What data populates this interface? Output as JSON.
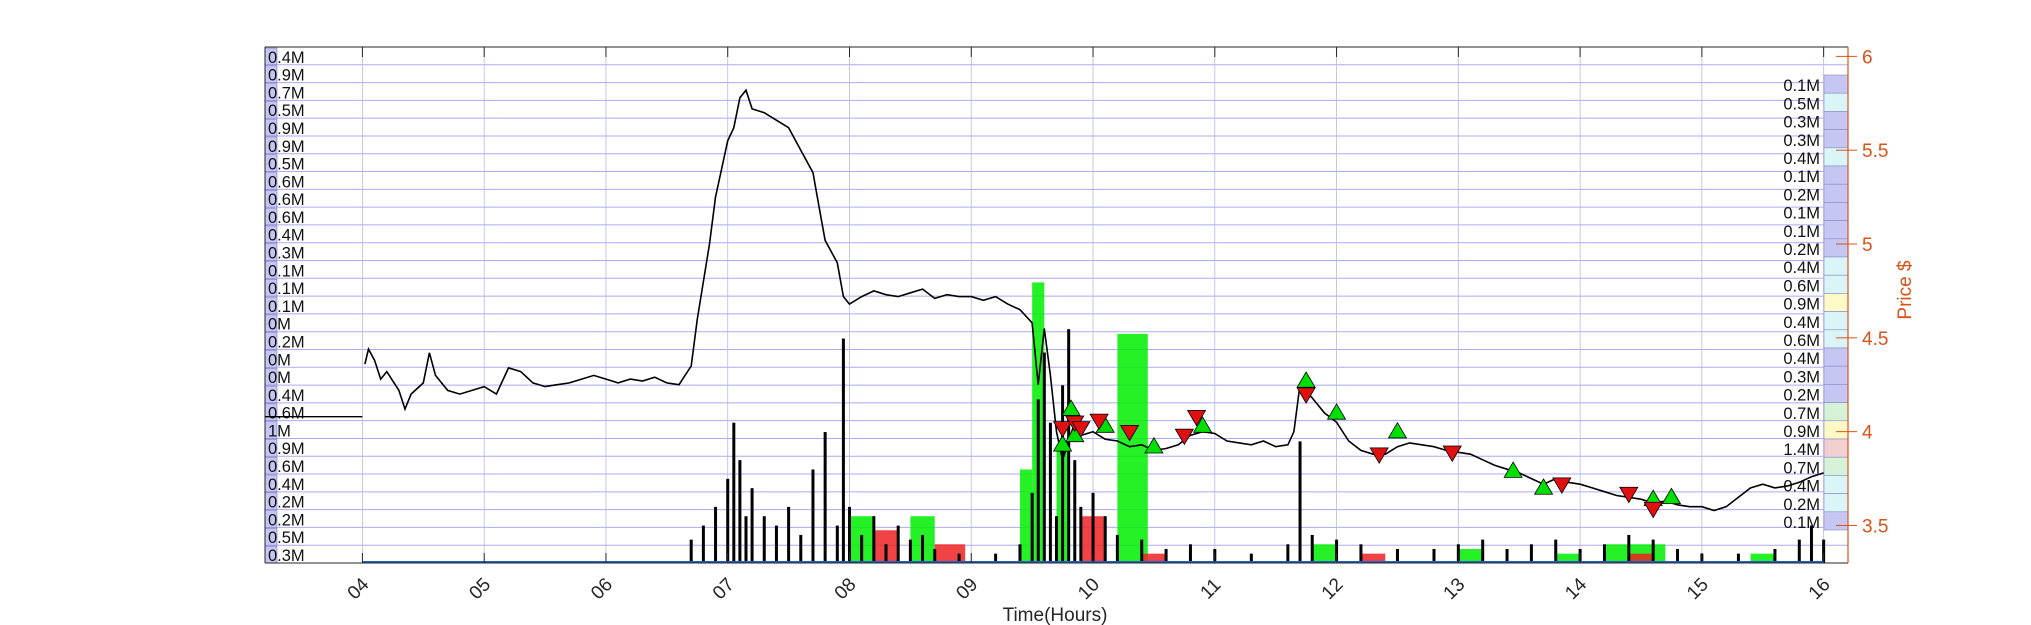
{
  "chart_data": {
    "type": "line",
    "xlabel": "Time(Hours)",
    "ylabel": "Price $",
    "xlim": [
      3.2,
      16.2
    ],
    "ylim": [
      3.3,
      6.05
    ],
    "x_ticks": [
      "04",
      "05",
      "06",
      "07",
      "08",
      "09",
      "10",
      "11",
      "12",
      "13",
      "14",
      "15",
      "16"
    ],
    "y_ticks": [
      3.5,
      4,
      4.5,
      5,
      5.5,
      6
    ],
    "grid": true,
    "colors": {
      "price_line": "#000000",
      "right_axis": "#d95319",
      "grid_line": "#8f8fef",
      "buy_marker": "#00e000",
      "sell_marker": "#e01010",
      "volume": "#000000",
      "volume_green": "#00ee00",
      "volume_red": "#ee2222",
      "left_level_box": "#c6c6f2",
      "right_level_box": "#c6c6f2",
      "right_box_cyan": "#d9f5f8",
      "right_box_yellow": "#fdfac8",
      "right_box_pink": "#f2cfd0",
      "right_box_green": "#d6f2d6"
    },
    "price_series": [
      [
        4.02,
        4.36
      ],
      [
        4.05,
        4.44
      ],
      [
        4.1,
        4.38
      ],
      [
        4.15,
        4.28
      ],
      [
        4.2,
        4.32
      ],
      [
        4.3,
        4.22
      ],
      [
        4.35,
        4.12
      ],
      [
        4.4,
        4.2
      ],
      [
        4.5,
        4.26
      ],
      [
        4.55,
        4.42
      ],
      [
        4.6,
        4.3
      ],
      [
        4.7,
        4.22
      ],
      [
        4.8,
        4.2
      ],
      [
        4.9,
        4.22
      ],
      [
        5.0,
        4.24
      ],
      [
        5.1,
        4.2
      ],
      [
        5.2,
        4.34
      ],
      [
        5.3,
        4.32
      ],
      [
        5.4,
        4.26
      ],
      [
        5.5,
        4.24
      ],
      [
        5.6,
        4.25
      ],
      [
        5.7,
        4.26
      ],
      [
        5.8,
        4.28
      ],
      [
        5.9,
        4.3
      ],
      [
        6.0,
        4.28
      ],
      [
        6.1,
        4.26
      ],
      [
        6.2,
        4.28
      ],
      [
        6.3,
        4.27
      ],
      [
        6.4,
        4.29
      ],
      [
        6.5,
        4.26
      ],
      [
        6.6,
        4.25
      ],
      [
        6.7,
        4.35
      ],
      [
        6.75,
        4.6
      ],
      [
        6.8,
        4.8
      ],
      [
        6.85,
        5.0
      ],
      [
        6.9,
        5.25
      ],
      [
        6.95,
        5.4
      ],
      [
        7.0,
        5.55
      ],
      [
        7.05,
        5.62
      ],
      [
        7.1,
        5.78
      ],
      [
        7.15,
        5.82
      ],
      [
        7.2,
        5.72
      ],
      [
        7.3,
        5.7
      ],
      [
        7.4,
        5.66
      ],
      [
        7.5,
        5.62
      ],
      [
        7.6,
        5.5
      ],
      [
        7.7,
        5.38
      ],
      [
        7.75,
        5.2
      ],
      [
        7.8,
        5.02
      ],
      [
        7.9,
        4.9
      ],
      [
        7.95,
        4.72
      ],
      [
        8.0,
        4.68
      ],
      [
        8.1,
        4.72
      ],
      [
        8.2,
        4.75
      ],
      [
        8.3,
        4.73
      ],
      [
        8.4,
        4.72
      ],
      [
        8.5,
        4.74
      ],
      [
        8.6,
        4.76
      ],
      [
        8.7,
        4.71
      ],
      [
        8.8,
        4.73
      ],
      [
        8.9,
        4.72
      ],
      [
        9.0,
        4.72
      ],
      [
        9.1,
        4.7
      ],
      [
        9.2,
        4.72
      ],
      [
        9.3,
        4.68
      ],
      [
        9.4,
        4.65
      ],
      [
        9.5,
        4.58
      ],
      [
        9.55,
        4.25
      ],
      [
        9.6,
        4.55
      ],
      [
        9.65,
        4.3
      ],
      [
        9.7,
        4.0
      ],
      [
        9.75,
        3.85
      ],
      [
        9.8,
        3.95
      ],
      [
        9.85,
        4.05
      ],
      [
        9.9,
        3.98
      ],
      [
        10.0,
        4.0
      ],
      [
        10.1,
        3.96
      ],
      [
        10.2,
        3.95
      ],
      [
        10.3,
        3.92
      ],
      [
        10.4,
        3.93
      ],
      [
        10.5,
        3.9
      ],
      [
        10.6,
        3.91
      ],
      [
        10.7,
        3.93
      ],
      [
        10.8,
        3.98
      ],
      [
        10.9,
        4.0
      ],
      [
        11.0,
        3.99
      ],
      [
        11.1,
        3.95
      ],
      [
        11.2,
        3.94
      ],
      [
        11.3,
        3.93
      ],
      [
        11.4,
        3.95
      ],
      [
        11.5,
        3.92
      ],
      [
        11.6,
        3.93
      ],
      [
        11.65,
        4.0
      ],
      [
        11.7,
        4.25
      ],
      [
        11.8,
        4.18
      ],
      [
        11.9,
        4.1
      ],
      [
        12.0,
        4.05
      ],
      [
        12.1,
        3.95
      ],
      [
        12.2,
        3.9
      ],
      [
        12.3,
        3.88
      ],
      [
        12.4,
        3.88
      ],
      [
        12.5,
        3.92
      ],
      [
        12.6,
        3.94
      ],
      [
        12.7,
        3.93
      ],
      [
        12.8,
        3.92
      ],
      [
        12.9,
        3.9
      ],
      [
        13.0,
        3.89
      ],
      [
        13.1,
        3.88
      ],
      [
        13.2,
        3.85
      ],
      [
        13.3,
        3.82
      ],
      [
        13.4,
        3.8
      ],
      [
        13.5,
        3.78
      ],
      [
        13.6,
        3.75
      ],
      [
        13.7,
        3.72
      ],
      [
        13.8,
        3.75
      ],
      [
        13.9,
        3.73
      ],
      [
        14.0,
        3.72
      ],
      [
        14.1,
        3.7
      ],
      [
        14.2,
        3.68
      ],
      [
        14.3,
        3.66
      ],
      [
        14.4,
        3.65
      ],
      [
        14.5,
        3.64
      ],
      [
        14.6,
        3.62
      ],
      [
        14.7,
        3.63
      ],
      [
        14.8,
        3.61
      ],
      [
        14.9,
        3.6
      ],
      [
        15.0,
        3.6
      ],
      [
        15.1,
        3.58
      ],
      [
        15.2,
        3.6
      ],
      [
        15.3,
        3.65
      ],
      [
        15.4,
        3.7
      ],
      [
        15.5,
        3.72
      ],
      [
        15.6,
        3.7
      ],
      [
        15.7,
        3.71
      ],
      [
        15.8,
        3.73
      ],
      [
        15.9,
        3.76
      ],
      [
        16.0,
        3.78
      ]
    ],
    "pre_market_segment": [
      [
        3.2,
        4.08
      ],
      [
        4.0,
        4.08
      ]
    ],
    "buy_markers": [
      [
        9.75,
        3.93
      ],
      [
        9.82,
        4.12
      ],
      [
        9.85,
        3.98
      ],
      [
        10.1,
        4.03
      ],
      [
        10.5,
        3.92
      ],
      [
        10.9,
        4.03
      ],
      [
        11.75,
        4.27
      ],
      [
        12.0,
        4.1
      ],
      [
        12.5,
        4.0
      ],
      [
        13.45,
        3.79
      ],
      [
        13.7,
        3.7
      ],
      [
        14.6,
        3.64
      ],
      [
        14.75,
        3.65
      ]
    ],
    "sell_markers": [
      [
        9.75,
        4.02
      ],
      [
        9.85,
        4.05
      ],
      [
        9.9,
        4.02
      ],
      [
        10.05,
        4.06
      ],
      [
        10.3,
        4.0
      ],
      [
        10.75,
        3.98
      ],
      [
        10.85,
        4.08
      ],
      [
        11.75,
        4.2
      ],
      [
        12.35,
        3.88
      ],
      [
        12.95,
        3.89
      ],
      [
        13.85,
        3.72
      ],
      [
        14.4,
        3.67
      ],
      [
        14.6,
        3.59
      ]
    ],
    "volume_bars": [
      [
        6.7,
        0.05
      ],
      [
        6.8,
        0.08
      ],
      [
        6.9,
        0.12
      ],
      [
        7.0,
        0.18
      ],
      [
        7.05,
        0.3
      ],
      [
        7.1,
        0.22
      ],
      [
        7.15,
        0.1
      ],
      [
        7.2,
        0.16
      ],
      [
        7.3,
        0.1
      ],
      [
        7.4,
        0.08
      ],
      [
        7.5,
        0.12
      ],
      [
        7.6,
        0.06
      ],
      [
        7.7,
        0.2
      ],
      [
        7.8,
        0.28
      ],
      [
        7.9,
        0.08
      ],
      [
        7.95,
        0.48
      ],
      [
        8.0,
        0.12
      ],
      [
        8.1,
        0.06
      ],
      [
        8.2,
        0.1
      ],
      [
        8.3,
        0.04
      ],
      [
        8.4,
        0.08
      ],
      [
        8.5,
        0.05
      ],
      [
        8.6,
        0.06
      ],
      [
        8.7,
        0.03
      ],
      [
        8.9,
        0.02
      ],
      [
        9.2,
        0.02
      ],
      [
        9.4,
        0.04
      ],
      [
        9.5,
        0.15
      ],
      [
        9.55,
        0.35
      ],
      [
        9.6,
        0.45
      ],
      [
        9.65,
        0.3
      ],
      [
        9.7,
        0.1
      ],
      [
        9.75,
        0.38
      ],
      [
        9.8,
        0.5
      ],
      [
        9.85,
        0.22
      ],
      [
        9.9,
        0.12
      ],
      [
        10.0,
        0.15
      ],
      [
        10.1,
        0.1
      ],
      [
        10.2,
        0.06
      ],
      [
        10.4,
        0.05
      ],
      [
        10.6,
        0.03
      ],
      [
        10.8,
        0.04
      ],
      [
        11.0,
        0.03
      ],
      [
        11.3,
        0.02
      ],
      [
        11.6,
        0.04
      ],
      [
        11.7,
        0.26
      ],
      [
        11.8,
        0.06
      ],
      [
        12.0,
        0.05
      ],
      [
        12.2,
        0.04
      ],
      [
        12.5,
        0.03
      ],
      [
        12.8,
        0.03
      ],
      [
        13.0,
        0.04
      ],
      [
        13.2,
        0.05
      ],
      [
        13.4,
        0.03
      ],
      [
        13.6,
        0.04
      ],
      [
        13.8,
        0.05
      ],
      [
        14.0,
        0.03
      ],
      [
        14.2,
        0.04
      ],
      [
        14.4,
        0.06
      ],
      [
        14.6,
        0.05
      ],
      [
        14.8,
        0.03
      ],
      [
        15.0,
        0.02
      ],
      [
        15.3,
        0.02
      ],
      [
        15.6,
        0.03
      ],
      [
        15.8,
        0.05
      ],
      [
        15.9,
        0.08
      ],
      [
        16.0,
        0.05
      ]
    ],
    "volume_blocks_green": [
      [
        8.0,
        8.2,
        0.1
      ],
      [
        8.5,
        8.7,
        0.1
      ],
      [
        9.4,
        9.5,
        0.2
      ],
      [
        9.5,
        9.6,
        0.6
      ],
      [
        9.7,
        9.8,
        0.25
      ],
      [
        10.2,
        10.45,
        0.49
      ],
      [
        11.8,
        12.0,
        0.04
      ],
      [
        13.0,
        13.2,
        0.03
      ],
      [
        13.8,
        14.0,
        0.02
      ],
      [
        14.2,
        14.7,
        0.04
      ],
      [
        15.4,
        15.6,
        0.02
      ]
    ],
    "volume_blocks_red": [
      [
        8.2,
        8.4,
        0.07
      ],
      [
        8.7,
        8.95,
        0.04
      ],
      [
        9.9,
        10.1,
        0.1
      ],
      [
        10.4,
        10.6,
        0.02
      ],
      [
        12.2,
        12.4,
        0.02
      ],
      [
        14.4,
        14.6,
        0.02
      ]
    ],
    "left_levels": [
      "0.4M",
      "0.9M",
      "0.7M",
      "0.5M",
      "0.9M",
      "0.9M",
      "0.5M",
      "0.6M",
      "0.6M",
      "0.6M",
      "0.4M",
      "0.3M",
      "0.1M",
      "0.1M",
      "0.1M",
      "0M",
      "0.2M",
      "0M",
      "0M",
      "0.4M",
      "0.6M",
      "1M",
      "0.9M",
      "0.6M",
      "0.4M",
      "0.2M",
      "0.2M",
      "0.5M",
      "0.3M"
    ],
    "right_levels": [
      "0.1M",
      "0.5M",
      "0.3M",
      "0.3M",
      "0.4M",
      "0.1M",
      "0.2M",
      "0.1M",
      "0.1M",
      "0.2M",
      "0.4M",
      "0.6M",
      "0.9M",
      "0.4M",
      "0.6M",
      "0.4M",
      "0.3M",
      "0.2M",
      "0.7M",
      "0.9M",
      "1.4M",
      "0.7M",
      "0.4M",
      "0.2M",
      "0.1M"
    ],
    "right_level_colors": [
      "blue",
      "cyan",
      "blue",
      "blue",
      "cyan",
      "blue",
      "blue",
      "blue",
      "blue",
      "blue",
      "cyan",
      "cyan",
      "yellow",
      "cyan",
      "cyan",
      "blue",
      "blue",
      "blue",
      "green",
      "yellow",
      "pink",
      "green",
      "cyan",
      "cyan",
      "blue"
    ]
  }
}
